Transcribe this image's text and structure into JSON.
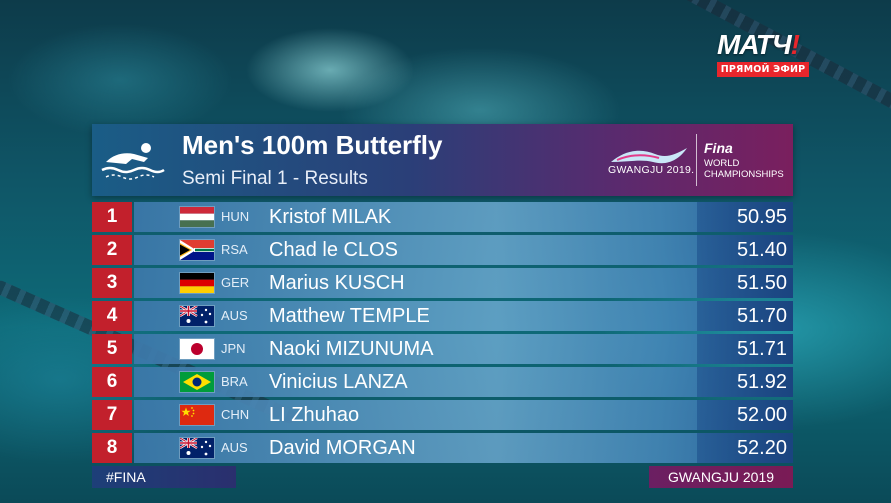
{
  "broadcaster": {
    "logo_main": "МАТЧ",
    "logo_mark": "!",
    "live_label": "ПРЯМОЙ ЭФИР"
  },
  "graphic": {
    "title": "Men's 100m Butterfly",
    "subtitle": "Semi Final 1 - Results",
    "event_logo_label": "GWANGJU 2019.",
    "fina_wordmark": "Fina",
    "fina_subtitle": "WORLD CHAMPIONSHIPS",
    "footer_left": "#FINA",
    "footer_right": "GWANGJU 2019"
  },
  "results": [
    {
      "rank": "1",
      "country": "HUN",
      "flag": "hun-flag-icon",
      "name": "Kristof MILAK",
      "time": "50.95"
    },
    {
      "rank": "2",
      "country": "RSA",
      "flag": "rsa-flag-icon",
      "name": "Chad le CLOS",
      "time": "51.40"
    },
    {
      "rank": "3",
      "country": "GER",
      "flag": "ger-flag-icon",
      "name": "Marius KUSCH",
      "time": "51.50"
    },
    {
      "rank": "4",
      "country": "AUS",
      "flag": "aus-flag-icon",
      "name": "Matthew TEMPLE",
      "time": "51.70"
    },
    {
      "rank": "5",
      "country": "JPN",
      "flag": "jpn-flag-icon",
      "name": "Naoki MIZUNUMA",
      "time": "51.71"
    },
    {
      "rank": "6",
      "country": "BRA",
      "flag": "bra-flag-icon",
      "name": "Vinicius LANZA",
      "time": "51.92"
    },
    {
      "rank": "7",
      "country": "CHN",
      "flag": "chn-flag-icon",
      "name": "LI Zhuhao",
      "time": "52.00"
    },
    {
      "rank": "8",
      "country": "AUS",
      "flag": "aus-flag-icon",
      "name": "David MORGAN",
      "time": "52.20"
    }
  ],
  "colors": {
    "rank_red": "#c2202c",
    "broadcaster_red": "#e8262c",
    "header_blue": "#1a5d86",
    "header_magenta": "#7a1f5e"
  }
}
